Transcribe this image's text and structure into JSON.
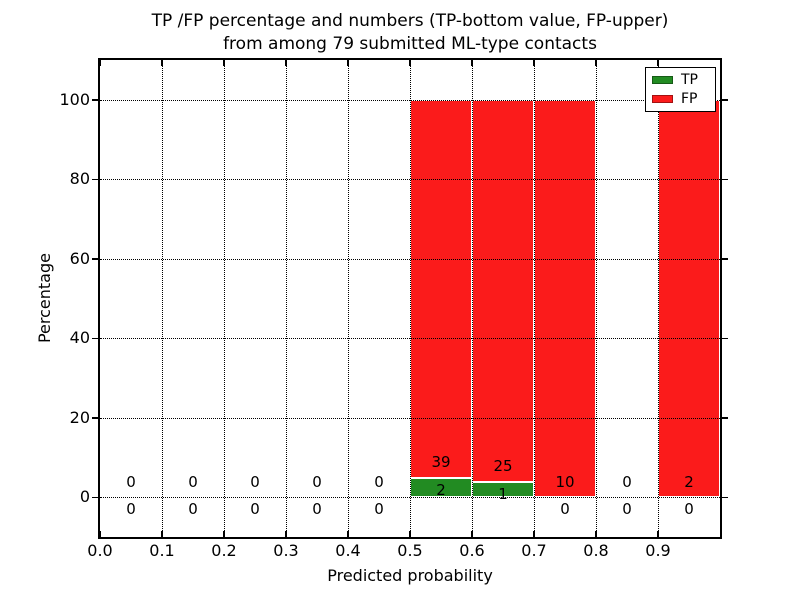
{
  "figure": {
    "title": "TP /FP percentage and numbers (TP-bottom value, FP-upper)\nfrom among 79 submitted ML-type contacts",
    "background": "#ffffff"
  },
  "colors": {
    "tp_green": "#228b22",
    "fp_red": "#fb1b1b",
    "axis": "#000000",
    "grid": "#000000",
    "text": "#000000"
  },
  "chart_data": {
    "type": "bar",
    "stacked": true,
    "title": "TP /FP percentage and numbers (TP-bottom value, FP-upper) from among 79 submitted ML-type contacts",
    "xlabel": "Predicted probability",
    "ylabel": "Percentage",
    "total_submitted_contacts": 79,
    "xlim": [
      0.0,
      1.0
    ],
    "ylim": [
      -10,
      110
    ],
    "xticks": [
      "0.0",
      "0.1",
      "0.2",
      "0.3",
      "0.4",
      "0.5",
      "0.6",
      "0.7",
      "0.8",
      "0.9"
    ],
    "yticks": [
      "0",
      "20",
      "40",
      "60",
      "80",
      "100"
    ],
    "ytick_values": [
      0,
      20,
      40,
      60,
      80,
      100
    ],
    "grid": "dotted",
    "legend": {
      "position": "upper right",
      "entries": [
        {
          "label": "TP",
          "color": "#228b22"
        },
        {
          "label": "FP",
          "color": "#fb1b1b"
        }
      ]
    },
    "series_note": "upper annotation = FP count, lower annotation = TP count",
    "bins": [
      {
        "range": [
          0.0,
          0.1
        ],
        "tp_count": 0,
        "fp_count": 0,
        "tp_pct": 0,
        "fp_pct": 0,
        "upper_label": "0",
        "lower_label": "0"
      },
      {
        "range": [
          0.1,
          0.2
        ],
        "tp_count": 0,
        "fp_count": 0,
        "tp_pct": 0,
        "fp_pct": 0,
        "upper_label": "0",
        "lower_label": "0"
      },
      {
        "range": [
          0.2,
          0.3
        ],
        "tp_count": 0,
        "fp_count": 0,
        "tp_pct": 0,
        "fp_pct": 0,
        "upper_label": "0",
        "lower_label": "0"
      },
      {
        "range": [
          0.3,
          0.4
        ],
        "tp_count": 0,
        "fp_count": 0,
        "tp_pct": 0,
        "fp_pct": 0,
        "upper_label": "0",
        "lower_label": "0"
      },
      {
        "range": [
          0.4,
          0.5
        ],
        "tp_count": 0,
        "fp_count": 0,
        "tp_pct": 0,
        "fp_pct": 0,
        "upper_label": "0",
        "lower_label": "0"
      },
      {
        "range": [
          0.5,
          0.6
        ],
        "tp_count": 2,
        "fp_count": 39,
        "tp_pct": 4.88,
        "fp_pct": 95.12,
        "upper_label": "39",
        "lower_label": "2"
      },
      {
        "range": [
          0.6,
          0.7
        ],
        "tp_count": 1,
        "fp_count": 25,
        "tp_pct": 3.85,
        "fp_pct": 96.15,
        "upper_label": "25",
        "lower_label": "1"
      },
      {
        "range": [
          0.7,
          0.8
        ],
        "tp_count": 0,
        "fp_count": 10,
        "tp_pct": 0,
        "fp_pct": 100,
        "upper_label": "10",
        "lower_label": "0"
      },
      {
        "range": [
          0.8,
          0.9
        ],
        "tp_count": 0,
        "fp_count": 0,
        "tp_pct": 0,
        "fp_pct": 0,
        "upper_label": "0",
        "lower_label": "0"
      },
      {
        "range": [
          0.9,
          1.0
        ],
        "tp_count": 0,
        "fp_count": 2,
        "tp_pct": 0,
        "fp_pct": 100,
        "upper_label": "2",
        "lower_label": "0"
      }
    ]
  }
}
